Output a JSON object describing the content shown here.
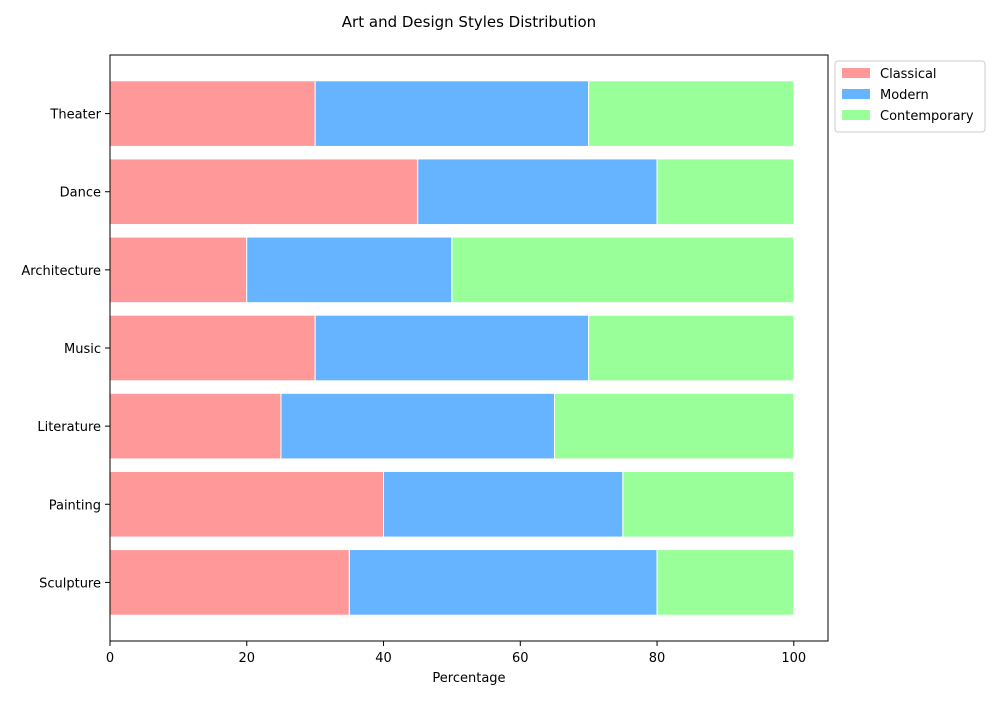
{
  "chart_data": {
    "type": "bar",
    "orientation": "horizontal",
    "stacked": true,
    "title": "Art and Design Styles Distribution",
    "xlabel": "Percentage",
    "ylabel": "",
    "xlim": [
      0,
      105
    ],
    "x_ticks": [
      0,
      20,
      40,
      60,
      80,
      100
    ],
    "grid": false,
    "legend_position": "outside top-right",
    "categories": [
      "Sculpture",
      "Painting",
      "Literature",
      "Music",
      "Architecture",
      "Dance",
      "Theater"
    ],
    "series": [
      {
        "name": "Classical",
        "color": "#ff9999",
        "values": [
          35,
          40,
          25,
          30,
          20,
          45,
          30
        ]
      },
      {
        "name": "Modern",
        "color": "#66b3ff",
        "values": [
          45,
          35,
          40,
          40,
          30,
          35,
          40
        ]
      },
      {
        "name": "Contemporary",
        "color": "#99ff99",
        "values": [
          20,
          25,
          35,
          30,
          50,
          20,
          30
        ]
      }
    ]
  }
}
